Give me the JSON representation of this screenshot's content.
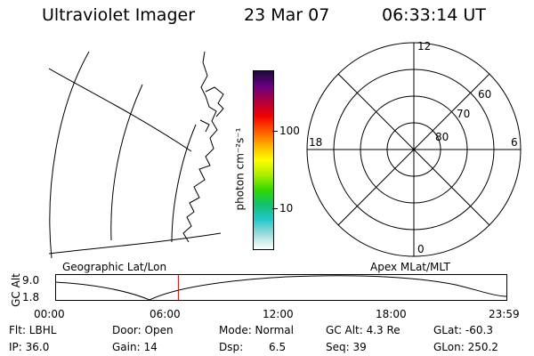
{
  "header": {
    "title": "Ultraviolet Imager",
    "date": "23 Mar 07",
    "time": "06:33:14 UT"
  },
  "colorbar": {
    "unit_label": "photon cm⁻²s⁻¹",
    "tick_100": "100",
    "tick_10": "10",
    "stops": [
      "#ffffff",
      "#9fdcdc",
      "#22c8c8",
      "#11c070",
      "#33d800",
      "#aaee00",
      "#ffff00",
      "#ffb000",
      "#ff5500",
      "#ee0000",
      "#b00040",
      "#660080",
      "#1a0a3a"
    ]
  },
  "polar": {
    "mlt_labels": {
      "top": "12",
      "left": "18",
      "right": "6",
      "bottom": "0"
    },
    "lat_labels": [
      "60",
      "70",
      "80"
    ]
  },
  "panels": {
    "left_label": "Geographic Lat/Lon",
    "right_label": "Apex MLat/MLT"
  },
  "timeline": {
    "ylabel": "GC Alt",
    "y_top": "9.0",
    "y_bottom": "1.8",
    "x_labels": [
      "00:00",
      "06:00",
      "12:00",
      "18:00",
      "23:59"
    ],
    "current_hour": 6.55,
    "marker_color": "#cc0000"
  },
  "status": {
    "flt": "Flt: LBHL",
    "ip": "IP: 36.0",
    "door": "Door: Open",
    "gain": "Gain: 14",
    "mode": "Mode: Normal",
    "dsp_label": "Dsp:",
    "dsp_value": "6.5",
    "gc_alt": "GC Alt: 4.3 Re",
    "seq": "Seq: 39",
    "glat": "GLat: -60.3",
    "glon": "GLon: 250.2"
  }
}
